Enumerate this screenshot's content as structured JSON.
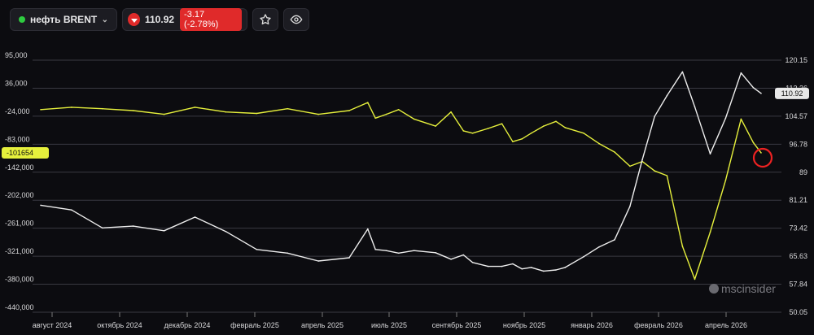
{
  "toolbar": {
    "instrument": "нефть BRENT",
    "instrument_dot_color": "#2ecc40",
    "price": "110.92",
    "change": "-3.17 (-2.78%)",
    "change_color": "#e02a2a",
    "star_icon": "star-icon",
    "eye_icon": "eye-icon"
  },
  "watermark": "mscinsider",
  "chart_data": {
    "type": "line",
    "title": "",
    "x_ticks": [
      "август 2024",
      "октябрь 2024",
      "декабрь 2024",
      "февраль 2025",
      "апрель 2025",
      "июль 2025",
      "сентябрь 2025",
      "ноябрь 2025",
      "январь 2026",
      "февраль 2026",
      "апрель 2026"
    ],
    "left_axis": {
      "ticks": [
        "95,000",
        "36,000",
        "-24,000",
        "-83,000",
        "-142,000",
        "-202,000",
        "-261,000",
        "-321,000",
        "-380,000",
        "-440,000"
      ],
      "ylim": [
        -440000,
        95000
      ]
    },
    "right_axis": {
      "ticks": [
        "120.15",
        "112.36",
        "104.57",
        "96.78",
        "89",
        "81.21",
        "73.42",
        "65.63",
        "57.84",
        "50.05"
      ],
      "ylim": [
        50.05,
        120.15
      ]
    },
    "left_last_value": "-101654",
    "right_last_value": "110.92",
    "grid": true,
    "series": [
      {
        "axis": "left",
        "color": "#e6f03c",
        "x": [
          0,
          1,
          2,
          3,
          4,
          5,
          6,
          7,
          8,
          9,
          10,
          10.6,
          10.85,
          11.2,
          11.6,
          12.1,
          12.8,
          13.3,
          13.7,
          14,
          14.5,
          14.95,
          15.3,
          15.6,
          15.9,
          16.3,
          16.7,
          17,
          17.6,
          18.1,
          18.6,
          19.1,
          19.5,
          19.9,
          20.3,
          20.8,
          21.2,
          21.7,
          22.2,
          22.7,
          23.1,
          23.35
        ],
        "y": [
          -10000,
          -5000,
          -8000,
          -12000,
          -20000,
          -5000,
          -15000,
          -18000,
          -8000,
          -20000,
          -12000,
          5000,
          -28000,
          -20000,
          -10000,
          -30000,
          -45000,
          -15000,
          -55000,
          -60000,
          -50000,
          -40000,
          -78000,
          -72000,
          -60000,
          -45000,
          -35000,
          -48000,
          -60000,
          -82000,
          -100000,
          -130000,
          -120000,
          -140000,
          -150000,
          -300000,
          -370000,
          -270000,
          -160000,
          -30000,
          -80000,
          -101654
        ]
      },
      {
        "axis": "right",
        "color": "#eeeeee",
        "x": [
          0,
          1,
          2,
          3,
          4,
          5,
          6,
          7,
          8,
          9,
          10,
          10.6,
          10.85,
          11.2,
          11.6,
          12.1,
          12.8,
          13.3,
          13.7,
          14,
          14.5,
          14.95,
          15.3,
          15.6,
          15.9,
          16.3,
          16.7,
          17,
          17.6,
          18.1,
          18.6,
          19.1,
          19.5,
          19.9,
          20.3,
          20.8,
          21.2,
          21.7,
          22.2,
          22.7,
          23.1,
          23.35
        ],
        "y": [
          79.8,
          78.5,
          73.5,
          74.0,
          72.7,
          76.5,
          72.5,
          67.5,
          66.5,
          64.3,
          65.2,
          73.2,
          67.5,
          67.2,
          66.5,
          67.2,
          66.6,
          64.8,
          66.0,
          63.9,
          62.8,
          62.8,
          63.5,
          62.1,
          62.5,
          61.5,
          61.8,
          62.5,
          65.5,
          68.2,
          70.2,
          79.5,
          92.5,
          104.5,
          110.3,
          116.9,
          107.2,
          94.1,
          104.0,
          116.6,
          112.5,
          110.92
        ]
      }
    ]
  }
}
